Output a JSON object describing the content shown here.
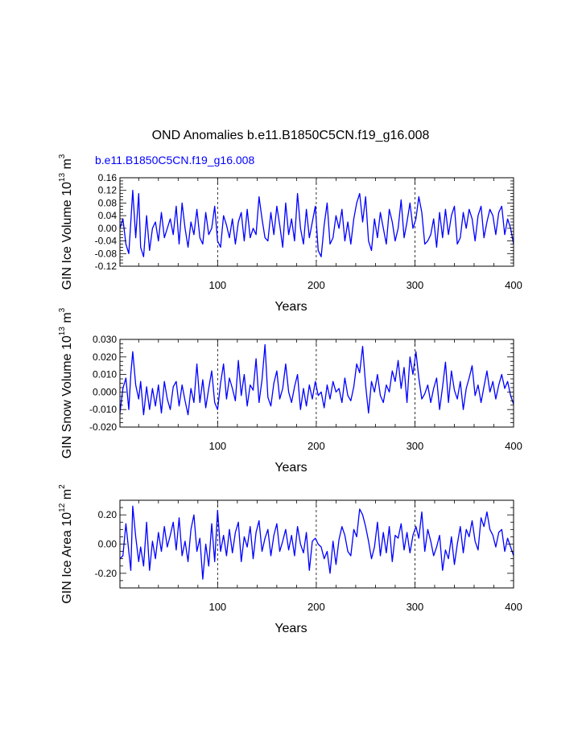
{
  "figure": {
    "title": "OND Anomalies b.e11.B1850C5CN.f19_g16.008",
    "subtitle": "b.e11.B1850C5CN.f19_g16.008",
    "line_color": "#0000ff"
  },
  "chart_data": [
    {
      "type": "line",
      "name": "ice-volume",
      "xlabel": "Years",
      "ylabel_parts": [
        "GIN Ice Volume 10",
        "13",
        " m",
        "3"
      ],
      "xlim": [
        1,
        400
      ],
      "ylim": [
        -0.12,
        0.16
      ],
      "xticks": [
        100,
        200,
        300,
        400
      ],
      "xtick_labels": [
        "100",
        "200",
        "300",
        "400"
      ],
      "yticks": [
        -0.12,
        -0.08,
        -0.04,
        0.0,
        0.04,
        0.08,
        0.12,
        0.16
      ],
      "ytick_labels": [
        "-0.12",
        "-0.08",
        "-0.04",
        "0.00",
        "0.04",
        "0.08",
        "0.12",
        "0.16"
      ],
      "dashed_vlines": [
        100,
        200,
        300
      ],
      "x": [
        1,
        4,
        7,
        10,
        12,
        14,
        17,
        20,
        22,
        25,
        28,
        31,
        34,
        37,
        40,
        43,
        46,
        49,
        52,
        55,
        58,
        61,
        64,
        67,
        70,
        73,
        76,
        79,
        82,
        85,
        88,
        91,
        94,
        97,
        100,
        103,
        106,
        109,
        112,
        115,
        118,
        121,
        124,
        127,
        130,
        133,
        136,
        139,
        142,
        145,
        148,
        151,
        154,
        157,
        160,
        163,
        166,
        169,
        172,
        175,
        178,
        181,
        184,
        187,
        190,
        193,
        196,
        199,
        202,
        205,
        208,
        211,
        214,
        217,
        220,
        223,
        226,
        229,
        232,
        235,
        238,
        241,
        244,
        247,
        250,
        253,
        256,
        259,
        262,
        265,
        268,
        271,
        274,
        277,
        280,
        283,
        286,
        289,
        292,
        295,
        298,
        301,
        304,
        307,
        310,
        313,
        316,
        319,
        322,
        325,
        328,
        331,
        334,
        337,
        340,
        343,
        346,
        349,
        352,
        355,
        358,
        361,
        364,
        367,
        370,
        373,
        376,
        379,
        382,
        385,
        388,
        391,
        394,
        397,
        400
      ],
      "y": [
        0.0,
        0.03,
        -0.05,
        -0.08,
        0.02,
        0.12,
        -0.03,
        0.11,
        -0.06,
        -0.09,
        0.04,
        -0.07,
        0.0,
        0.02,
        -0.04,
        0.05,
        -0.03,
        0.0,
        0.03,
        -0.02,
        0.07,
        -0.05,
        0.08,
        0.0,
        -0.06,
        0.02,
        -0.02,
        0.06,
        -0.03,
        -0.05,
        0.05,
        -0.02,
        0.0,
        0.07,
        -0.04,
        -0.06,
        0.04,
        0.01,
        -0.03,
        0.03,
        -0.05,
        0.02,
        0.05,
        -0.04,
        0.06,
        -0.03,
        0.0,
        -0.02,
        0.1,
        0.03,
        -0.03,
        -0.04,
        0.05,
        -0.02,
        0.07,
        0.01,
        -0.06,
        0.08,
        -0.02,
        0.03,
        -0.04,
        0.11,
        0.0,
        -0.05,
        0.06,
        -0.03,
        0.02,
        0.07,
        -0.07,
        -0.09,
        0.01,
        0.08,
        -0.05,
        -0.03,
        0.04,
        0.0,
        0.06,
        -0.04,
        0.02,
        -0.05,
        0.03,
        0.08,
        0.11,
        0.02,
        0.1,
        -0.04,
        -0.07,
        0.03,
        -0.03,
        0.05,
        0.0,
        -0.05,
        0.06,
        0.02,
        -0.04,
        0.0,
        0.09,
        -0.03,
        0.02,
        0.08,
        0.0,
        0.03,
        0.1,
        0.05,
        -0.05,
        -0.04,
        -0.02,
        0.03,
        -0.06,
        0.05,
        -0.03,
        0.06,
        -0.02,
        0.04,
        0.07,
        -0.05,
        -0.03,
        0.05,
        0.0,
        0.06,
        0.03,
        -0.04,
        0.04,
        0.07,
        -0.03,
        0.02,
        0.06,
        0.04,
        -0.02,
        0.05,
        0.07,
        -0.02,
        0.03,
        0.0,
        -0.05
      ]
    },
    {
      "type": "line",
      "name": "snow-volume",
      "xlabel": "Years",
      "ylabel_parts": [
        "GIN Snow Volume 10",
        "13",
        " m",
        "3"
      ],
      "xlim": [
        1,
        400
      ],
      "ylim": [
        -0.02,
        0.03
      ],
      "xticks": [
        100,
        200,
        300,
        400
      ],
      "xtick_labels": [
        "100",
        "200",
        "300",
        "400"
      ],
      "yticks": [
        -0.02,
        -0.01,
        0.0,
        0.01,
        0.02,
        0.03
      ],
      "ytick_labels": [
        "-0.020",
        "-0.010",
        "0.000",
        "0.010",
        "0.020",
        "0.030"
      ],
      "dashed_vlines": [
        100,
        200,
        300
      ],
      "x": [
        1,
        4,
        7,
        10,
        12,
        14,
        17,
        20,
        22,
        25,
        28,
        31,
        34,
        37,
        40,
        43,
        46,
        49,
        52,
        55,
        58,
        61,
        64,
        67,
        70,
        73,
        76,
        79,
        82,
        85,
        88,
        91,
        94,
        97,
        100,
        103,
        106,
        109,
        112,
        115,
        118,
        121,
        124,
        127,
        130,
        133,
        136,
        139,
        142,
        145,
        148,
        151,
        154,
        157,
        160,
        163,
        166,
        169,
        172,
        175,
        178,
        181,
        184,
        187,
        190,
        193,
        196,
        199,
        202,
        205,
        208,
        211,
        214,
        217,
        220,
        223,
        226,
        229,
        232,
        235,
        238,
        241,
        244,
        247,
        250,
        253,
        256,
        259,
        262,
        265,
        268,
        271,
        274,
        277,
        280,
        283,
        286,
        289,
        292,
        295,
        298,
        301,
        304,
        307,
        310,
        313,
        316,
        319,
        322,
        325,
        328,
        331,
        334,
        337,
        340,
        343,
        346,
        349,
        352,
        355,
        358,
        361,
        364,
        367,
        370,
        373,
        376,
        379,
        382,
        385,
        388,
        391,
        394,
        397,
        400
      ],
      "y": [
        -0.012,
        0.002,
        0.008,
        -0.01,
        0.01,
        0.023,
        0.004,
        -0.004,
        0.006,
        -0.013,
        0.003,
        -0.01,
        0.002,
        -0.008,
        0.004,
        -0.012,
        0.006,
        -0.004,
        -0.01,
        0.003,
        0.006,
        -0.008,
        0.004,
        -0.005,
        -0.013,
        0.002,
        -0.006,
        0.016,
        -0.006,
        0.007,
        -0.009,
        0.002,
        0.012,
        -0.006,
        -0.01,
        0.005,
        0.016,
        -0.004,
        0.008,
        0.002,
        -0.005,
        0.018,
        -0.002,
        0.01,
        -0.008,
        0.004,
        0.001,
        0.019,
        -0.006,
        0.007,
        0.027,
        -0.003,
        -0.008,
        0.005,
        0.012,
        -0.004,
        0.002,
        0.016,
        0.0,
        -0.006,
        0.003,
        0.01,
        -0.01,
        0.002,
        -0.008,
        0.004,
        -0.004,
        0.006,
        -0.002,
        0.0,
        -0.009,
        0.004,
        -0.004,
        0.006,
        0.0,
        0.002,
        -0.006,
        0.008,
        -0.002,
        -0.005,
        0.003,
        0.016,
        0.011,
        0.026,
        0.004,
        -0.012,
        0.006,
        0.0,
        0.01,
        -0.002,
        -0.006,
        0.004,
        0.0,
        0.012,
        0.006,
        0.018,
        0.002,
        0.014,
        -0.006,
        0.02,
        0.01,
        0.023,
        0.008,
        -0.004,
        -0.001,
        0.004,
        -0.006,
        0.002,
        0.008,
        -0.01,
        0.003,
        0.017,
        -0.006,
        0.012,
        0.001,
        -0.004,
        0.006,
        -0.01,
        0.002,
        0.008,
        0.015,
        -0.002,
        0.004,
        -0.006,
        0.003,
        0.012,
        0.0,
        0.006,
        -0.004,
        0.004,
        0.01,
        0.002,
        0.006,
        -0.002,
        -0.007
      ]
    },
    {
      "type": "line",
      "name": "ice-area",
      "xlabel": "Years",
      "ylabel_parts": [
        "GIN Ice Area 10",
        "12",
        " m",
        "2"
      ],
      "xlim": [
        1,
        400
      ],
      "ylim": [
        -0.3,
        0.3
      ],
      "xticks": [
        100,
        200,
        300,
        400
      ],
      "xtick_labels": [
        "100",
        "200",
        "300",
        "400"
      ],
      "yticks": [
        -0.2,
        0.0,
        0.2
      ],
      "ytick_labels": [
        "-0.20",
        "0.00",
        "0.20"
      ],
      "dashed_vlines": [
        100,
        200,
        300
      ],
      "x": [
        1,
        4,
        7,
        10,
        12,
        14,
        17,
        20,
        22,
        25,
        28,
        31,
        34,
        37,
        40,
        43,
        46,
        49,
        52,
        55,
        58,
        61,
        64,
        67,
        70,
        73,
        76,
        79,
        82,
        85,
        88,
        91,
        94,
        97,
        100,
        103,
        106,
        109,
        112,
        115,
        118,
        121,
        124,
        127,
        130,
        133,
        136,
        139,
        142,
        145,
        148,
        151,
        154,
        157,
        160,
        163,
        166,
        169,
        172,
        175,
        178,
        181,
        184,
        187,
        190,
        193,
        196,
        199,
        202,
        205,
        208,
        211,
        214,
        217,
        220,
        223,
        226,
        229,
        232,
        235,
        238,
        241,
        244,
        247,
        250,
        253,
        256,
        259,
        262,
        265,
        268,
        271,
        274,
        277,
        280,
        283,
        286,
        289,
        292,
        295,
        298,
        301,
        304,
        307,
        310,
        313,
        316,
        319,
        322,
        325,
        328,
        331,
        334,
        337,
        340,
        343,
        346,
        349,
        352,
        355,
        358,
        361,
        364,
        367,
        370,
        373,
        376,
        379,
        382,
        385,
        388,
        391,
        394,
        397,
        400
      ],
      "y": [
        -0.1,
        -0.08,
        0.14,
        -0.05,
        -0.18,
        0.26,
        0.05,
        -0.12,
        -0.02,
        -0.15,
        0.15,
        -0.18,
        0.02,
        -0.1,
        0.08,
        -0.05,
        0.12,
        -0.02,
        0.06,
        0.15,
        -0.04,
        0.18,
        -0.08,
        0.02,
        -0.12,
        0.1,
        0.2,
        -0.05,
        0.04,
        -0.24,
        0.0,
        -0.15,
        0.14,
        -0.12,
        0.23,
        -0.05,
        0.06,
        -0.08,
        0.1,
        -0.06,
        0.08,
        0.15,
        -0.12,
        0.05,
        -0.02,
        0.12,
        -0.1,
        0.08,
        0.16,
        -0.05,
        0.04,
        0.1,
        -0.08,
        0.06,
        0.14,
        -0.05,
        0.02,
        0.1,
        -0.04,
        0.06,
        -0.08,
        0.12,
        0.0,
        -0.06,
        0.08,
        -0.18,
        0.02,
        0.04,
        0.0,
        -0.02,
        -0.1,
        -0.05,
        -0.2,
        0.02,
        -0.14,
        0.03,
        0.12,
        0.06,
        -0.05,
        -0.08,
        0.1,
        0.05,
        0.24,
        0.2,
        0.12,
        0.02,
        -0.1,
        -0.02,
        0.15,
        -0.08,
        0.08,
        -0.06,
        0.12,
        -0.12,
        0.06,
        0.04,
        0.14,
        -0.04,
        0.08,
        -0.06,
        0.06,
        0.12,
        0.04,
        0.22,
        -0.05,
        0.1,
        0.02,
        -0.08,
        -0.02,
        0.06,
        -0.18,
        -0.04,
        -0.1,
        0.05,
        -0.14,
        0.0,
        0.12,
        -0.06,
        0.1,
        0.05,
        0.16,
        0.02,
        -0.04,
        0.18,
        0.12,
        0.22,
        0.1,
        0.06,
        -0.02,
        0.08,
        0.1,
        -0.05,
        0.04,
        -0.02,
        -0.08
      ]
    }
  ]
}
